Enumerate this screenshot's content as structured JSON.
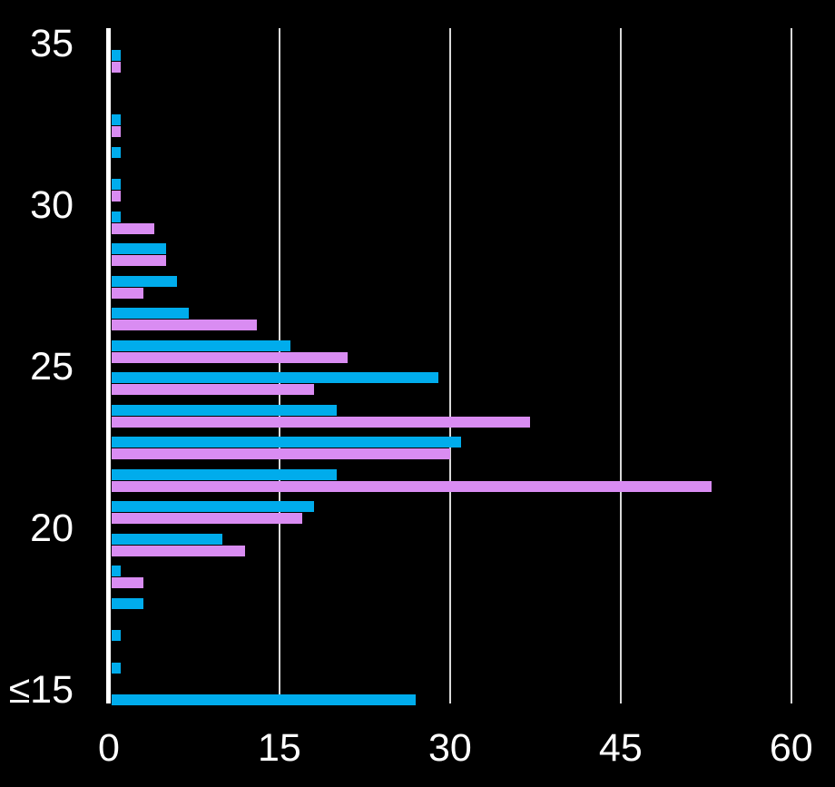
{
  "chart_data": {
    "type": "bar",
    "orientation": "horizontal",
    "title": "",
    "categories": [
      "35",
      "34",
      "33",
      "32",
      "31",
      "30",
      "29",
      "28",
      "27",
      "26",
      "25",
      "24",
      "23",
      "22",
      "21",
      "20",
      "19",
      "18",
      "17",
      "16",
      "≤15"
    ],
    "series": [
      {
        "name": "blue-series",
        "color": "#00ACEC",
        "values": [
          1,
          0,
          1,
          1,
          1,
          1,
          5,
          6,
          7,
          16,
          29,
          20,
          31,
          20,
          18,
          10,
          1,
          3,
          1,
          1,
          27
        ]
      },
      {
        "name": "magenta-series",
        "color": "#D98CF2",
        "values": [
          1,
          0,
          1,
          0,
          1,
          4,
          5,
          3,
          13,
          21,
          18,
          37,
          30,
          53,
          17,
          12,
          3,
          0,
          0,
          0,
          0
        ]
      }
    ],
    "x_axis": {
      "tick_labels": [
        "0",
        "15",
        "30",
        "45",
        "60"
      ],
      "tick_values": [
        0,
        15,
        30,
        45,
        60
      ],
      "range": [
        0,
        60
      ]
    },
    "y_axis": {
      "tick_labels": [
        "35",
        "30",
        "25",
        "20",
        "≤15"
      ],
      "tick_row_indices": [
        0,
        5,
        10,
        15,
        20
      ]
    },
    "grid": true,
    "legend": "none",
    "colors": {
      "background": "#000000",
      "axis": "#FFFFFF",
      "gridline": "#D9D9D9",
      "label_text": "#FFFFFF"
    }
  }
}
